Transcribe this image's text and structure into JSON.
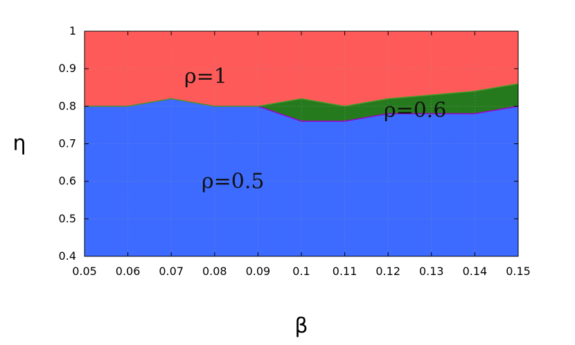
{
  "chart_data": {
    "type": "area",
    "xlabel": "β",
    "ylabel": "η",
    "xlim": [
      0.05,
      0.15
    ],
    "ylim": [
      0.4,
      1.0
    ],
    "x_ticks": [
      "0.05",
      "0.06",
      "0.07",
      "0.08",
      "0.09",
      "0.1",
      "0.11",
      "0.12",
      "0.13",
      "0.14",
      "0.15"
    ],
    "y_ticks": [
      "0.4",
      "0.5",
      "0.6",
      "0.7",
      "0.8",
      "0.9",
      "1"
    ],
    "grid": true,
    "x": [
      0.05,
      0.06,
      0.07,
      0.08,
      0.09,
      0.1,
      0.11,
      0.12,
      0.13,
      0.14,
      0.15
    ],
    "boundaries": {
      "rho_0_5_upper": [
        0.8,
        0.8,
        0.82,
        0.8,
        0.8,
        0.76,
        0.76,
        0.78,
        0.78,
        0.78,
        0.8
      ],
      "rho_0_6_upper": [
        0.8,
        0.8,
        0.82,
        0.8,
        0.8,
        0.82,
        0.8,
        0.82,
        0.83,
        0.84,
        0.86
      ]
    },
    "regions": [
      {
        "label": "ρ=1",
        "color": "#ff5a5a",
        "label_at": [
          0.073,
          0.88
        ]
      },
      {
        "label": "ρ=0.6",
        "color": "#267a1e",
        "label_at": [
          0.119,
          0.79
        ]
      },
      {
        "label": "ρ=0.5",
        "color": "#3d6bff",
        "label_at": [
          0.077,
          0.6
        ]
      }
    ],
    "boundary_colors": {
      "lower": "#a000c8",
      "upper": "#4a9a2a"
    }
  }
}
